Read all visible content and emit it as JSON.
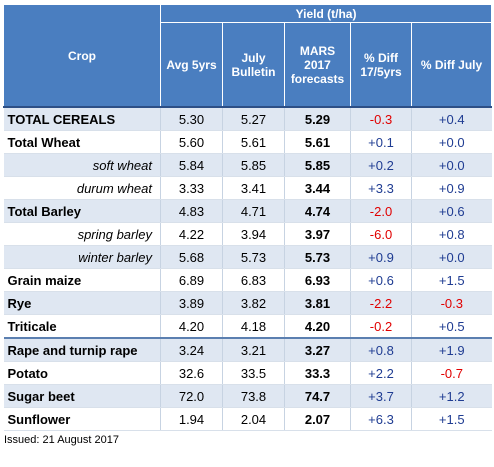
{
  "header": {
    "group_label": "Yield (t/ha)",
    "columns": [
      "Crop",
      "Avg 5yrs",
      "July Bulletin",
      "MARS 2017 forecasts",
      "% Diff 17/5yrs",
      "% Diff July"
    ]
  },
  "rows": [
    {
      "crop": "TOTAL CEREALS",
      "avg5": "5.30",
      "july": "5.27",
      "mars": "5.29",
      "diff5": "-0.3",
      "diffjuly": "+0.4"
    },
    {
      "crop": "Total Wheat",
      "avg5": "5.60",
      "july": "5.61",
      "mars": "5.61",
      "diff5": "+0.1",
      "diffjuly": "+0.0"
    },
    {
      "crop": "soft wheat",
      "avg5": "5.84",
      "july": "5.85",
      "mars": "5.85",
      "diff5": "+0.2",
      "diffjuly": "+0.0"
    },
    {
      "crop": "durum wheat",
      "avg5": "3.33",
      "july": "3.41",
      "mars": "3.44",
      "diff5": "+3.3",
      "diffjuly": "+0.9"
    },
    {
      "crop": "Total Barley",
      "avg5": "4.83",
      "july": "4.71",
      "mars": "4.74",
      "diff5": "-2.0",
      "diffjuly": "+0.6"
    },
    {
      "crop": "spring barley",
      "avg5": "4.22",
      "july": "3.94",
      "mars": "3.97",
      "diff5": "-6.0",
      "diffjuly": "+0.8"
    },
    {
      "crop": "winter barley",
      "avg5": "5.68",
      "july": "5.73",
      "mars": "5.73",
      "diff5": "+0.9",
      "diffjuly": "+0.0"
    },
    {
      "crop": "Grain maize",
      "avg5": "6.89",
      "july": "6.83",
      "mars": "6.93",
      "diff5": "+0.6",
      "diffjuly": "+1.5"
    },
    {
      "crop": "Rye",
      "avg5": "3.89",
      "july": "3.82",
      "mars": "3.81",
      "diff5": "-2.2",
      "diffjuly": "-0.3"
    },
    {
      "crop": "Triticale",
      "avg5": "4.20",
      "july": "4.18",
      "mars": "4.20",
      "diff5": "-0.2",
      "diffjuly": "+0.5"
    },
    {
      "crop": "Rape and turnip rape",
      "avg5": "3.24",
      "july": "3.21",
      "mars": "3.27",
      "diff5": "+0.8",
      "diffjuly": "+1.9"
    },
    {
      "crop": "Potato",
      "avg5": "32.6",
      "july": "33.5",
      "mars": "33.3",
      "diff5": "+2.2",
      "diffjuly": "-0.7"
    },
    {
      "crop": "Sugar beet",
      "avg5": "72.0",
      "july": "73.8",
      "mars": "74.7",
      "diff5": "+3.7",
      "diffjuly": "+1.2"
    },
    {
      "crop": "Sunflower",
      "avg5": "1.94",
      "july": "2.04",
      "mars": "2.07",
      "diff5": "+6.3",
      "diffjuly": "+1.5"
    }
  ],
  "footer": {
    "issued": "Issued: 21 August 2017"
  },
  "colors": {
    "header_bg": "#4a7ec0",
    "shade": "#dfe7f2",
    "negative": "#e00000",
    "positive": "#1f3c92"
  }
}
